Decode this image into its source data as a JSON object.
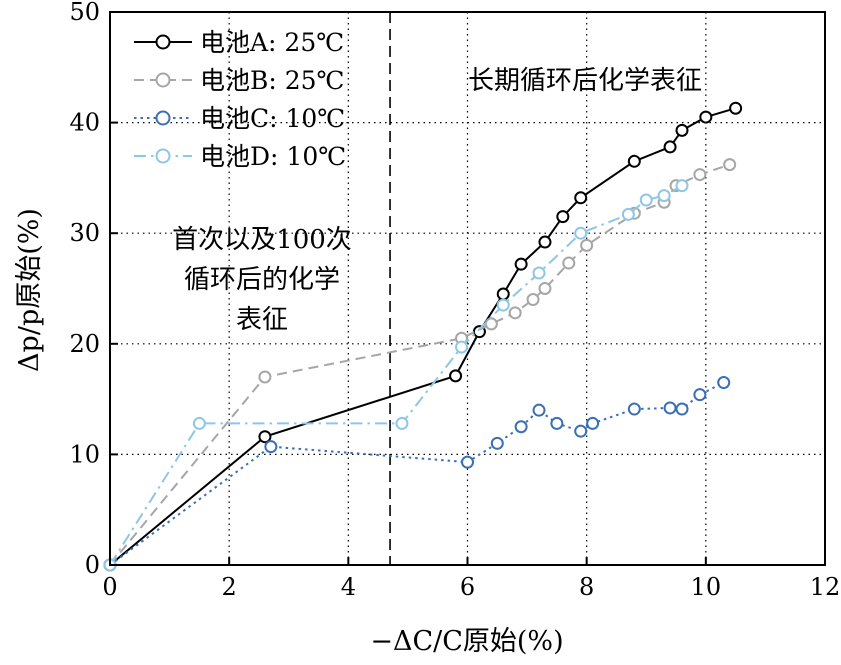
{
  "chart_data": {
    "type": "line",
    "xlabel": "−ΔC/C原始(%)",
    "ylabel": "Δp/p原始(%)",
    "xlim": [
      0,
      12
    ],
    "ylim": [
      0,
      50
    ],
    "xticks": [
      "0",
      "2",
      "4",
      "6",
      "8",
      "10",
      "12"
    ],
    "yticks": [
      "0",
      "10",
      "20",
      "30",
      "40",
      "50"
    ],
    "grid": "dotted",
    "vline_x": 4.7,
    "annotations": {
      "right": "长期循环后化学表征",
      "left_lines": [
        "首次以及100次",
        "循环后的化学",
        "表征"
      ]
    },
    "legend_position": "top-left",
    "series": [
      {
        "name": "电池A: 25℃",
        "color": "#000000",
        "dash": "solid",
        "points": [
          [
            0,
            0
          ],
          [
            2.6,
            11.6
          ],
          [
            5.8,
            17.1
          ],
          [
            6.2,
            21.1
          ],
          [
            6.6,
            24.5
          ],
          [
            6.9,
            27.2
          ],
          [
            7.3,
            29.2
          ],
          [
            7.6,
            31.5
          ],
          [
            7.9,
            33.2
          ],
          [
            8.8,
            36.5
          ],
          [
            9.4,
            37.8
          ],
          [
            9.6,
            39.3
          ],
          [
            10.0,
            40.5
          ],
          [
            10.5,
            41.3
          ]
        ]
      },
      {
        "name": "电池B: 25℃",
        "color": "#a6a6a6",
        "dash": "dashed",
        "points": [
          [
            0,
            0
          ],
          [
            2.6,
            17.0
          ],
          [
            5.9,
            20.5
          ],
          [
            6.4,
            21.8
          ],
          [
            6.8,
            22.8
          ],
          [
            7.1,
            24.0
          ],
          [
            7.3,
            25.0
          ],
          [
            7.7,
            27.3
          ],
          [
            8.0,
            28.9
          ],
          [
            8.8,
            31.8
          ],
          [
            9.3,
            32.8
          ],
          [
            9.5,
            34.3
          ],
          [
            9.9,
            35.3
          ],
          [
            10.4,
            36.2
          ]
        ]
      },
      {
        "name": "电池C: 10℃",
        "color": "#3a6fb5",
        "dash": "dotted",
        "points": [
          [
            0,
            0
          ],
          [
            2.7,
            10.7
          ],
          [
            6.0,
            9.3
          ],
          [
            6.5,
            11.0
          ],
          [
            6.9,
            12.5
          ],
          [
            7.2,
            14.0
          ],
          [
            7.5,
            12.8
          ],
          [
            7.9,
            12.1
          ],
          [
            8.1,
            12.8
          ],
          [
            8.8,
            14.1
          ],
          [
            9.4,
            14.2
          ],
          [
            9.6,
            14.1
          ],
          [
            9.9,
            15.4
          ],
          [
            10.3,
            16.5
          ]
        ]
      },
      {
        "name": "电池D: 10℃",
        "color": "#8ec6e6",
        "dash": "dashdot",
        "points": [
          [
            0,
            0
          ],
          [
            1.5,
            12.8
          ],
          [
            4.9,
            12.8
          ],
          [
            5.9,
            19.7
          ],
          [
            6.6,
            23.5
          ],
          [
            7.2,
            26.4
          ],
          [
            7.9,
            30.0
          ],
          [
            8.7,
            31.7
          ],
          [
            9.0,
            33.0
          ],
          [
            9.3,
            33.4
          ],
          [
            9.6,
            34.3
          ]
        ]
      }
    ]
  }
}
